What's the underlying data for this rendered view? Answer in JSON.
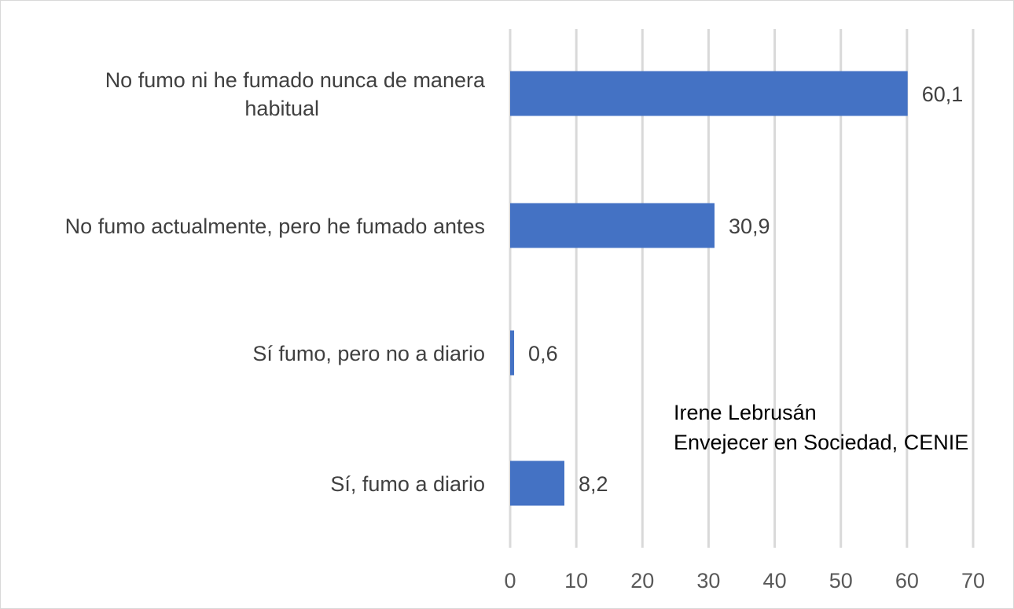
{
  "chart_data": {
    "type": "bar",
    "orientation": "horizontal",
    "categories": [
      "No fumo ni he fumado nunca de manera habitual",
      "No fumo actualmente, pero he fumado antes",
      "Sí fumo, pero no a diario",
      "Sí, fumo a diario"
    ],
    "category_lines": [
      [
        "No fumo ni he fumado nunca de manera",
        "habitual"
      ],
      [
        "No fumo actualmente, pero he fumado antes"
      ],
      [
        "Sí fumo, pero no a diario"
      ],
      [
        "Sí, fumo a diario"
      ]
    ],
    "values": [
      60.1,
      30.9,
      0.6,
      8.2
    ],
    "value_labels": [
      "60,1",
      "30,9",
      "0,6",
      "8,2"
    ],
    "title": "",
    "xlabel": "",
    "ylabel": "",
    "xlim": [
      0,
      70
    ],
    "xticks": [
      0,
      10,
      20,
      30,
      40,
      50,
      60,
      70
    ],
    "grid": true,
    "legend": "none",
    "bar_color": "#4472c4",
    "annotation_lines": [
      "Irene Lebrusán",
      "Envejecer en Sociedad, CENIE"
    ]
  }
}
